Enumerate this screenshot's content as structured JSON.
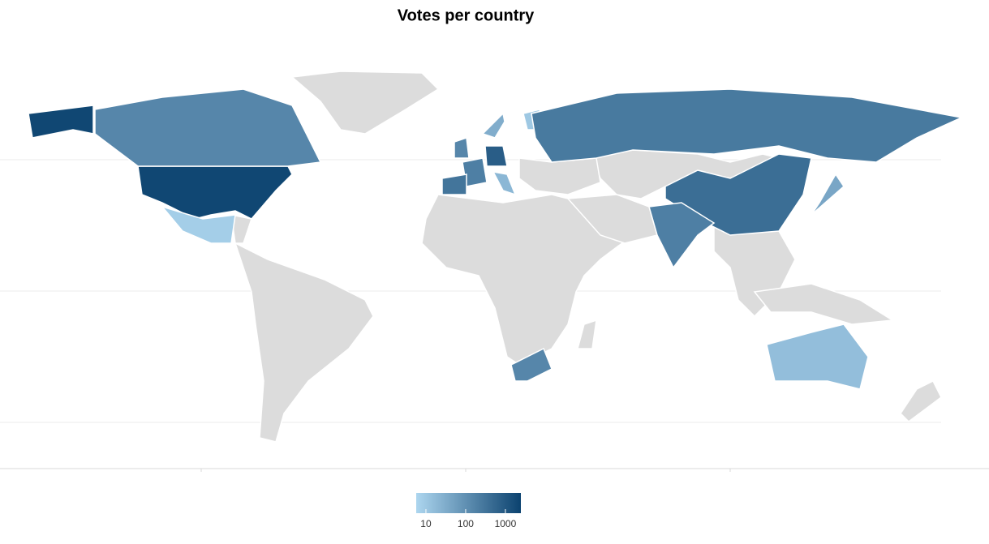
{
  "chart_data": {
    "type": "choropleth",
    "title": "Votes per country",
    "values": [
      2000,
      2000,
      150,
      8,
      150,
      200,
      800,
      300,
      20,
      30,
      10,
      250,
      400,
      200,
      40,
      15,
      150
    ],
    "land_color": "#dcdcdc",
    "colorbar": {
      "lim": [
        5.7,
        2450
      ],
      "ticks": [
        10,
        100,
        1000
      ],
      "log": true,
      "colors": [
        "#add6ef",
        "#0b426f"
      ]
    }
  }
}
